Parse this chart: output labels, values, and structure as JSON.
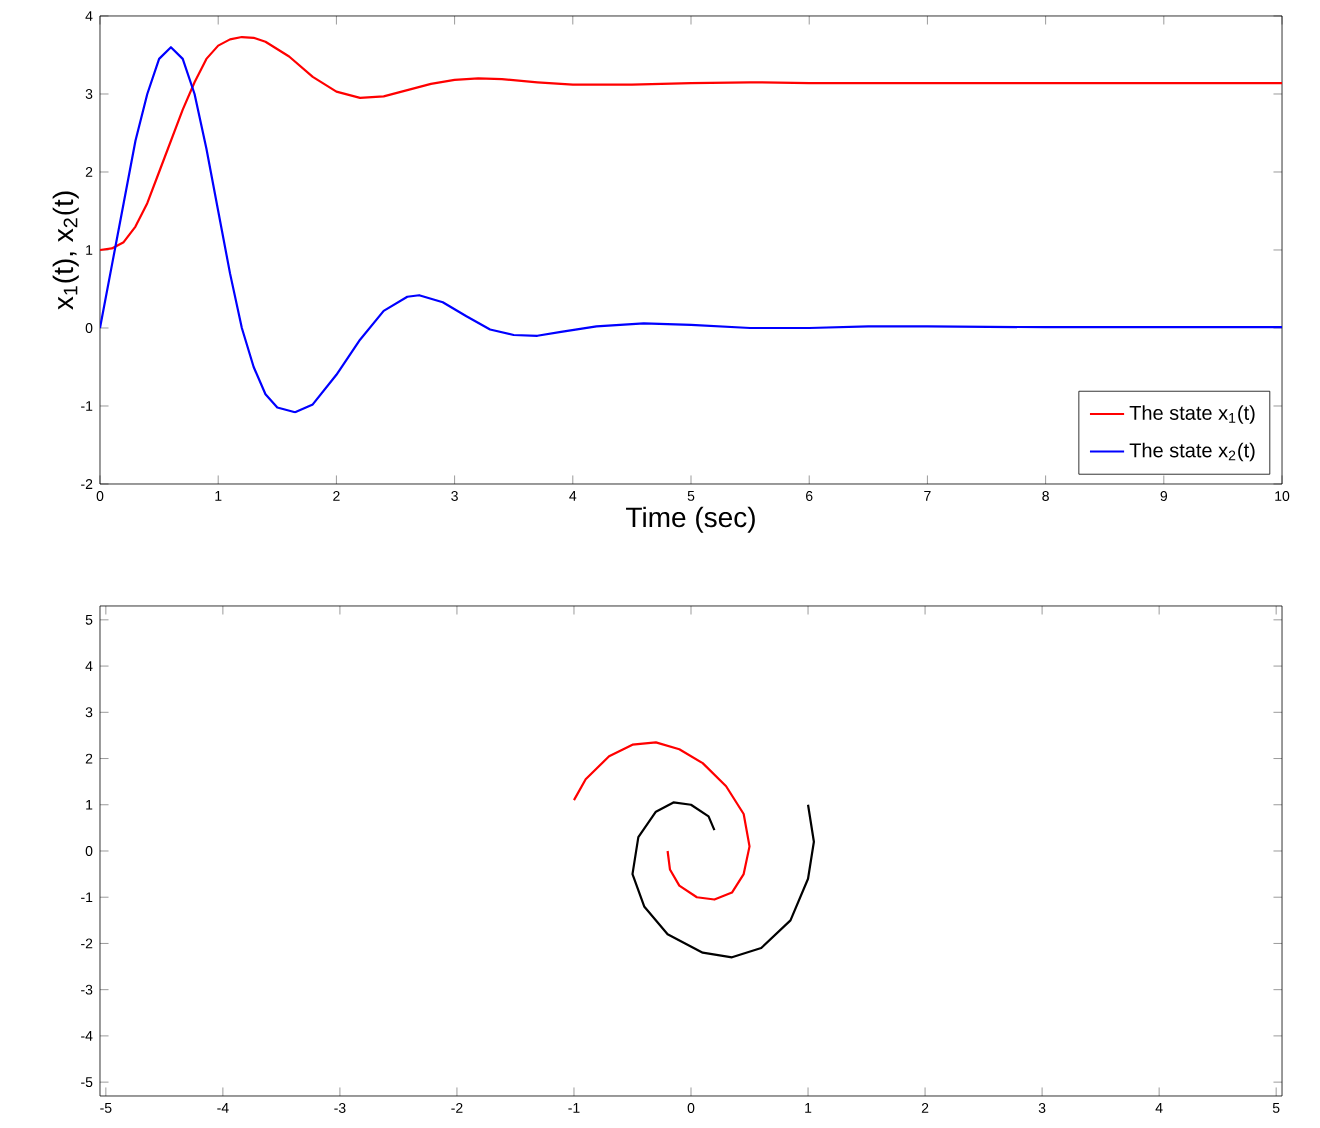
{
  "chart_data": [
    {
      "type": "line",
      "xlabel": "Time (sec)",
      "ylabel": "x$_{1}$(t), x$_{2}$(t)",
      "xlim": [
        0,
        10
      ],
      "ylim": [
        -2,
        4
      ],
      "xticks": [
        0,
        1,
        2,
        3,
        4,
        5,
        6,
        7,
        8,
        9,
        10
      ],
      "yticks": [
        -2,
        -1,
        0,
        1,
        2,
        3,
        4
      ],
      "legend": "bottom right",
      "series": [
        {
          "name": "The state x$_{1}$(t)",
          "color": "#ff0000",
          "x": [
            0,
            0.1,
            0.2,
            0.3,
            0.4,
            0.5,
            0.6,
            0.7,
            0.8,
            0.9,
            1.0,
            1.1,
            1.2,
            1.3,
            1.4,
            1.6,
            1.8,
            2.0,
            2.2,
            2.4,
            2.6,
            2.8,
            3.0,
            3.2,
            3.4,
            3.7,
            4.0,
            4.5,
            5.0,
            5.5,
            6,
            7,
            8,
            10
          ],
          "values": [
            1,
            1.02,
            1.1,
            1.3,
            1.6,
            2.0,
            2.4,
            2.8,
            3.15,
            3.45,
            3.62,
            3.7,
            3.73,
            3.72,
            3.67,
            3.48,
            3.22,
            3.03,
            2.95,
            2.97,
            3.05,
            3.13,
            3.18,
            3.2,
            3.19,
            3.15,
            3.12,
            3.12,
            3.14,
            3.15,
            3.14,
            3.14,
            3.14,
            3.14
          ]
        },
        {
          "name": "The state x$_{2}$(t)",
          "color": "#0000ff",
          "x": [
            0,
            0.1,
            0.2,
            0.3,
            0.4,
            0.5,
            0.6,
            0.7,
            0.8,
            0.9,
            1.0,
            1.1,
            1.2,
            1.3,
            1.4,
            1.5,
            1.65,
            1.8,
            2.0,
            2.2,
            2.4,
            2.6,
            2.7,
            2.9,
            3.1,
            3.3,
            3.5,
            3.7,
            3.9,
            4.2,
            4.6,
            5.0,
            5.5,
            6,
            6.5,
            7,
            8,
            10
          ],
          "values": [
            0,
            0.8,
            1.6,
            2.4,
            3.0,
            3.45,
            3.6,
            3.45,
            3.0,
            2.3,
            1.5,
            0.7,
            0.0,
            -0.5,
            -0.85,
            -1.02,
            -1.08,
            -0.98,
            -0.6,
            -0.15,
            0.22,
            0.4,
            0.42,
            0.33,
            0.15,
            -0.02,
            -0.09,
            -0.1,
            -0.05,
            0.02,
            0.06,
            0.04,
            0.0,
            0.0,
            0.02,
            0.02,
            0.01,
            0.01
          ]
        }
      ]
    },
    {
      "type": "line",
      "xlim": [
        -5.05,
        5.05
      ],
      "ylim": [
        -5.3,
        5.3
      ],
      "xticks": [
        -5,
        -4,
        -3,
        -2,
        -1,
        0,
        1,
        2,
        3,
        4,
        5
      ],
      "yticks": [
        -5,
        -4,
        -3,
        -2,
        -1,
        0,
        1,
        2,
        3,
        4,
        5
      ],
      "series": [
        {
          "color": "#ff0000",
          "x": [
            -1,
            -0.9,
            -0.7,
            -0.5,
            -0.3,
            -0.1,
            0.1,
            0.3,
            0.45,
            0.5,
            0.45,
            0.35,
            0.2,
            0.05,
            -0.1,
            -0.18,
            -0.2
          ],
          "values": [
            1.1,
            1.55,
            2.05,
            2.3,
            2.35,
            2.2,
            1.9,
            1.4,
            0.8,
            0.1,
            -0.5,
            -0.9,
            -1.05,
            -1.0,
            -0.75,
            -0.4,
            0.0
          ]
        },
        {
          "color": "#000000",
          "x": [
            1.0,
            1.05,
            1.0,
            0.85,
            0.6,
            0.35,
            0.1,
            -0.2,
            -0.4,
            -0.5,
            -0.45,
            -0.3,
            -0.15,
            0.0,
            0.15,
            0.2
          ],
          "values": [
            1.0,
            0.2,
            -0.6,
            -1.5,
            -2.1,
            -2.3,
            -2.2,
            -1.8,
            -1.2,
            -0.5,
            0.3,
            0.85,
            1.05,
            1.0,
            0.75,
            0.45
          ]
        }
      ]
    }
  ]
}
